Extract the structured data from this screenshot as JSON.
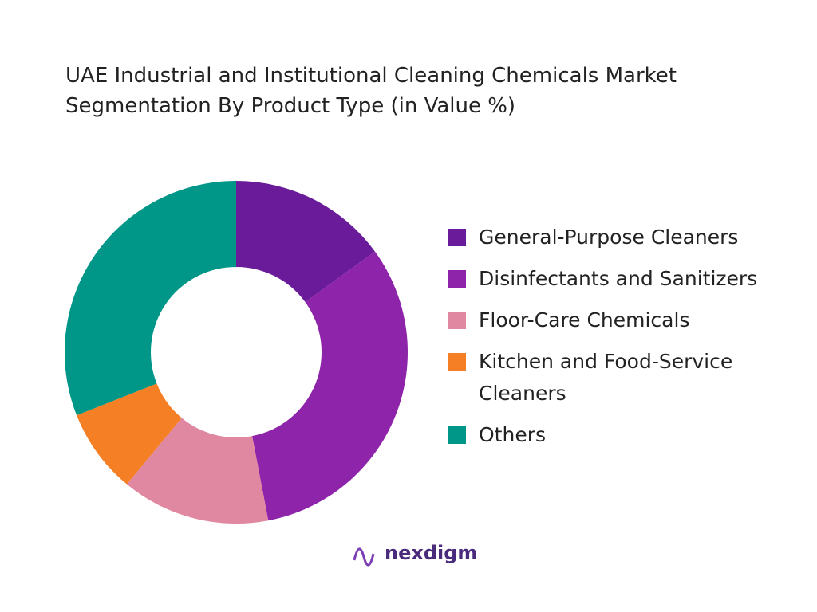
{
  "chart_data": {
    "type": "pie",
    "title": "UAE Industrial and Institutional Cleaning Chemicals Market Segmentation By Product Type  (in Value %)",
    "categories": [
      "General-Purpose Cleaners",
      "Disinfectants and Sanitizers",
      "Floor-Care Chemicals",
      "Kitchen and Food-Service Cleaners",
      "Others"
    ],
    "values": [
      15,
      32,
      14,
      8,
      31
    ],
    "colors": [
      "#6a1b9a",
      "#8e24aa",
      "#e088a1",
      "#f47f24",
      "#009688"
    ],
    "donut": true
  },
  "brand": "nexdigm"
}
